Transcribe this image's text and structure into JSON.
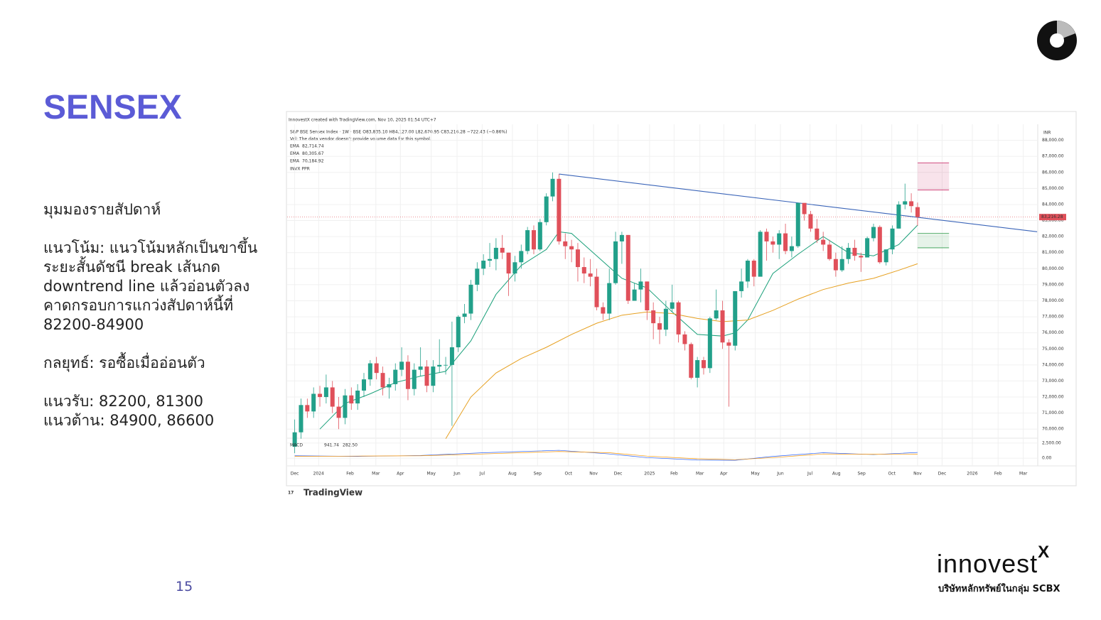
{
  "slide": {
    "title": "SENSEX",
    "body": [
      "มุมมองรายสัปดาห์",
      "แนวโน้ม: แนวโน้มหลักเป็นขาขึ้น",
      "ระยะสั้นดัชนี break เส้นกด",
      "downtrend line แล้วอ่อนตัวลง",
      "คาดกรอบการแกว่งสัปดาห์นี้ที่",
      "82200-84900",
      "กลยุทธ์: รอซื้อเมื่ออ่อนตัว",
      "แนวรับ: 82200, 81300",
      "แนวต้าน: 84900, 86600"
    ],
    "page_number": "15",
    "logo": "innovest",
    "logo_mark": "X",
    "logo_tagline": "บริษัทหลักทรัพย์ในกลุ่ม SCBX"
  },
  "chart_data": {
    "type": "candlestick",
    "credit": "InnovestX created with TradingView.com, Nov 10, 2025 01:54 UTC+7",
    "symbol_line": "S&P BSE Sensex Index · 1W · BSE  O83,835.10 H84,127.00 L82,670.95 C83,216.28 −722.43 (−0.86%)",
    "volume_note": "Vol: The data vendor doesn't provide volume data for this symbol.",
    "indicator_note": "INVX PPR",
    "currency": "INR",
    "brand": "TradingView",
    "up_color": "#22a08a",
    "down_color": "#e0505a",
    "open": [
      68900,
      69800,
      71500,
      71100,
      72200,
      72000,
      72600,
      71400,
      70700,
      72100,
      71600,
      72400,
      73100,
      74100,
      73500,
      72600,
      72800,
      73700,
      74200,
      72500,
      73700,
      73900,
      72700,
      73900,
      74000,
      74000,
      75100,
      77000,
      77200,
      79000,
      80000,
      80500,
      80600,
      81300,
      81000,
      79700,
      80400,
      81100,
      82400,
      81200,
      82900,
      84500,
      85600,
      81700,
      81400,
      81200,
      80100,
      79700,
      79500,
      77600,
      77200,
      79100,
      81700,
      82100,
      78000,
      78700,
      79200,
      77400,
      76600,
      76200,
      77500,
      77900,
      75900,
      75300,
      73200,
      74300,
      73800,
      76900,
      77400,
      75400,
      75200,
      78600,
      79200,
      80500,
      79500,
      82300,
      81700,
      81500,
      82200,
      81100,
      81400,
      84100,
      83400,
      82500,
      81800,
      81500,
      80600,
      79900,
      80600,
      81300,
      80800,
      80700,
      81900,
      82600,
      80400,
      81200,
      82500,
      84000,
      84200,
      83835.1
    ],
    "high": [
      70600,
      71900,
      71900,
      72600,
      72700,
      73400,
      73000,
      72000,
      72500,
      72600,
      72800,
      73500,
      74300,
      74500,
      73900,
      73200,
      74100,
      75100,
      74600,
      74100,
      75100,
      74300,
      74300,
      75600,
      74500,
      76700,
      77100,
      77800,
      79300,
      80400,
      80900,
      81600,
      81900,
      82100,
      81000,
      80800,
      81500,
      82600,
      82700,
      83100,
      84700,
      86000,
      85900,
      82200,
      81800,
      81600,
      80700,
      80600,
      80000,
      77900,
      80000,
      82300,
      82300,
      82100,
      79100,
      80000,
      79200,
      77900,
      77000,
      78000,
      79000,
      78000,
      76100,
      75400,
      74500,
      74500,
      77000,
      78700,
      78000,
      75600,
      78600,
      80000,
      80600,
      80600,
      82400,
      82500,
      82000,
      82400,
      82800,
      82000,
      84100,
      84000,
      83600,
      83100,
      82300,
      81800,
      81000,
      81400,
      81600,
      81800,
      81000,
      82000,
      82800,
      82700,
      81200,
      82700,
      84200,
      85300,
      84700,
      84127
    ],
    "low": [
      68500,
      69400,
      70700,
      70700,
      71400,
      71600,
      71000,
      70000,
      70300,
      71200,
      71200,
      72000,
      72700,
      73100,
      72100,
      71900,
      72400,
      73300,
      71800,
      72100,
      73300,
      72300,
      72300,
      73500,
      73400,
      70200,
      74800,
      76600,
      76800,
      78600,
      79600,
      80100,
      79900,
      80600,
      78300,
      79200,
      80000,
      80900,
      80900,
      81100,
      82700,
      84200,
      81500,
      80600,
      80400,
      79200,
      79100,
      78900,
      77400,
      76800,
      76800,
      79000,
      80300,
      77800,
      78000,
      77900,
      76800,
      75600,
      75300,
      75800,
      77300,
      75400,
      74900,
      73100,
      72600,
      73400,
      73500,
      76800,
      75000,
      71400,
      74900,
      78200,
      78800,
      78900,
      79600,
      80500,
      81000,
      80600,
      80900,
      80700,
      81300,
      83000,
      82300,
      81600,
      81100,
      80500,
      79500,
      79800,
      80300,
      80500,
      79800,
      80700,
      81700,
      80300,
      80200,
      80900,
      82500,
      83700,
      83500,
      82670.95
    ],
    "close": [
      69800,
      71500,
      71100,
      72200,
      72000,
      72600,
      71400,
      70700,
      72100,
      71600,
      72400,
      73100,
      74100,
      73500,
      72600,
      72800,
      73700,
      74200,
      72500,
      73700,
      73900,
      72700,
      73900,
      74000,
      74000,
      75100,
      77000,
      77200,
      79000,
      80000,
      80500,
      80600,
      81300,
      81000,
      79700,
      80400,
      81100,
      82400,
      81200,
      82900,
      84500,
      85600,
      81700,
      81400,
      81200,
      80100,
      79700,
      79500,
      77600,
      77200,
      79100,
      81700,
      82100,
      78000,
      78700,
      79200,
      77400,
      76600,
      76200,
      77500,
      77900,
      75900,
      75300,
      73200,
      74300,
      73800,
      76900,
      77400,
      75400,
      75200,
      78600,
      79200,
      80500,
      79500,
      82300,
      81700,
      81500,
      82200,
      81100,
      81400,
      84100,
      83400,
      82500,
      81800,
      81500,
      80600,
      79900,
      80600,
      81300,
      80800,
      80700,
      81900,
      82600,
      80400,
      81200,
      82500,
      84000,
      84200,
      83900,
      83216.28
    ],
    "last_price": {
      "value": 83216.28,
      "label": "83,216.28"
    },
    "lines": [
      {
        "name": "EMA",
        "label": "82,714.74",
        "color": "#1aa07a",
        "x": [
          4,
          8,
          12,
          16,
          20,
          24,
          28,
          32,
          36,
          40,
          42,
          44,
          48,
          52,
          56,
          60,
          64,
          68,
          70,
          72,
          76,
          80,
          84,
          88,
          92,
          96,
          99
        ],
        "values": [
          70000,
          71600,
          72200,
          72900,
          73300,
          73600,
          75500,
          78400,
          80200,
          81200,
          82300,
          82200,
          80800,
          79400,
          78800,
          77300,
          75900,
          75800,
          76000,
          76800,
          79700,
          80900,
          82000,
          81000,
          80800,
          81500,
          82714.74
        ]
      },
      {
        "name": "EMA",
        "label": "80,305.67",
        "color": "#e6a020",
        "x": [
          24,
          28,
          32,
          36,
          40,
          44,
          48,
          52,
          56,
          60,
          64,
          68,
          72,
          76,
          80,
          84,
          88,
          92,
          96,
          99
        ],
        "values": [
          69400,
          72000,
          73500,
          74400,
          75100,
          75900,
          76600,
          77100,
          77300,
          77200,
          76900,
          76700,
          76800,
          77400,
          78100,
          78700,
          79100,
          79400,
          79900,
          80305.67
        ]
      },
      {
        "name": "EMA",
        "label": "70,184.92",
        "color": "#e07030"
      }
    ],
    "trendline": {
      "color": "#3a64b8",
      "x": [
        42,
        118
      ],
      "values": [
        85900,
        82300
      ]
    },
    "zones": [
      {
        "x": [
          99,
          104
        ],
        "low": 84900,
        "high": 86600,
        "color": "#c2185b"
      },
      {
        "x": [
          99,
          104
        ],
        "low": 81300,
        "high": 82200,
        "color": "#2e9a4a"
      }
    ],
    "macd": {
      "name": "MACD",
      "labels": [
        "941.74",
        "282.50"
      ],
      "ylim": [
        -800,
        3300
      ],
      "yticks": [
        {
          "value": 2500,
          "label": "2,500.00"
        },
        {
          "value": 0,
          "label": "0.00"
        }
      ],
      "line": {
        "color": "#2962ff",
        "x": [
          0,
          10,
          20,
          30,
          42,
          50,
          56,
          64,
          70,
          76,
          84,
          92,
          99
        ],
        "values": [
          400,
          300,
          450,
          900,
          1300,
          700,
          100,
          -300,
          -350,
          300,
          900,
          600,
          940
        ]
      },
      "signal": {
        "color": "#ff9800",
        "x": [
          0,
          10,
          20,
          30,
          42,
          50,
          56,
          64,
          70,
          76,
          84,
          92,
          99
        ],
        "values": [
          300,
          350,
          400,
          700,
          1100,
          900,
          350,
          -100,
          -250,
          100,
          700,
          650,
          660
        ]
      }
    },
    "xlim": [
      -1.2,
      118.1
    ],
    "ylim": [
      69500,
      89000
    ],
    "yticks": [
      {
        "value": 88000,
        "label": "88,000.00"
      },
      {
        "value": 87000,
        "label": "87,000.00"
      },
      {
        "value": 86000,
        "label": "86,000.00"
      },
      {
        "value": 85000,
        "label": "85,000.00"
      },
      {
        "value": 84000,
        "label": "84,000.00"
      },
      {
        "value": 83000,
        "label": "83,000.00"
      },
      {
        "value": 82000,
        "label": "82,000.00"
      },
      {
        "value": 81000,
        "label": "81,000.00"
      },
      {
        "value": 80000,
        "label": "80,000.00"
      },
      {
        "value": 79000,
        "label": "79,000.00"
      },
      {
        "value": 78000,
        "label": "78,000.00"
      },
      {
        "value": 77000,
        "label": "77,000.00"
      },
      {
        "value": 76000,
        "label": "76,000.00"
      },
      {
        "value": 75000,
        "label": "75,000.00"
      },
      {
        "value": 74000,
        "label": "74,000.00"
      },
      {
        "value": 73000,
        "label": "73,000.00"
      },
      {
        "value": 72000,
        "label": "72,000.00"
      },
      {
        "value": 71000,
        "label": "71,000.00"
      },
      {
        "value": 70000,
        "label": "70,000.00"
      }
    ],
    "xticks": [
      {
        "value": 0,
        "label": "Dec"
      },
      {
        "value": 3.8,
        "label": "2024"
      },
      {
        "value": 8.8,
        "label": "Feb"
      },
      {
        "value": 12.9,
        "label": "Mar"
      },
      {
        "value": 16.8,
        "label": "Apr"
      },
      {
        "value": 21.7,
        "label": "May"
      },
      {
        "value": 25.8,
        "label": "Jun"
      },
      {
        "value": 29.8,
        "label": "Jul"
      },
      {
        "value": 34.6,
        "label": "Aug"
      },
      {
        "value": 38.6,
        "label": "Sep"
      },
      {
        "value": 43.5,
        "label": "Oct"
      },
      {
        "value": 47.5,
        "label": "Nov"
      },
      {
        "value": 51.4,
        "label": "Dec"
      },
      {
        "value": 56.4,
        "label": "2025"
      },
      {
        "value": 60.3,
        "label": "Feb"
      },
      {
        "value": 64.4,
        "label": "Mar"
      },
      {
        "value": 68.2,
        "label": "Apr"
      },
      {
        "value": 73.2,
        "label": "May"
      },
      {
        "value": 77.2,
        "label": "Jun"
      },
      {
        "value": 81.9,
        "label": "Jul"
      },
      {
        "value": 86.1,
        "label": "Aug"
      },
      {
        "value": 90.1,
        "label": "Sep"
      },
      {
        "value": 94.9,
        "label": "Oct"
      },
      {
        "value": 99,
        "label": "Nov"
      },
      {
        "value": 102.9,
        "label": "Dec"
      },
      {
        "value": 107.7,
        "label": "2026"
      },
      {
        "value": 111.8,
        "label": "Feb"
      },
      {
        "value": 115.8,
        "label": "Mar"
      }
    ]
  }
}
